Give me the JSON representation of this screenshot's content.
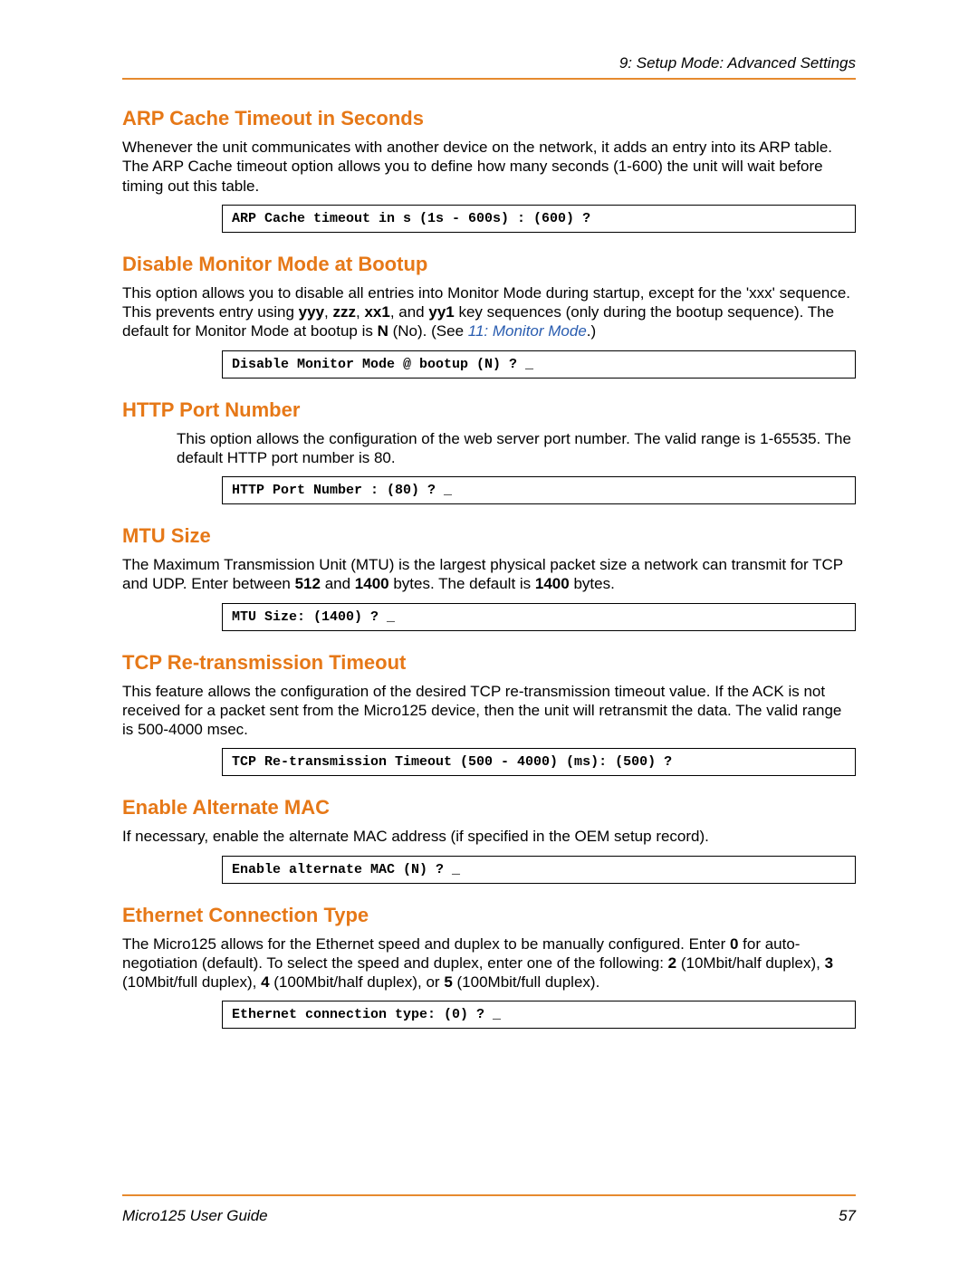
{
  "header": {
    "chapter": "9: Setup Mode: Advanced Settings"
  },
  "footer": {
    "guide": "Micro125 User Guide",
    "page": "57"
  },
  "colors": {
    "accent": "#e67817",
    "rule": "#e68a2e",
    "link": "#2a5db0"
  },
  "sections": {
    "arp": {
      "title": "ARP Cache Timeout in Seconds",
      "body": "Whenever the unit communicates with another device on the network, it adds an entry into its ARP table. The ARP Cache timeout option allows you to define how many seconds (1-600) the unit will wait before timing out this table.",
      "code": "ARP Cache timeout in s (1s - 600s) : (600) ?"
    },
    "monitor": {
      "title": "Disable Monitor Mode at Bootup",
      "body_pre": "This option allows you to disable all entries into Monitor Mode during startup, except for the 'xxx' sequence. This prevents entry using ",
      "k1": "yyy",
      "k2": "zzz",
      "k3": "xx1",
      "k4": "yy1",
      "body_mid": " key sequences (only during the bootup sequence). The default for Monitor Mode at bootup is ",
      "default": "N",
      "body_post": " (No). (See ",
      "link": "11: Monitor Mode",
      "body_end": ".)",
      "code": "Disable Monitor Mode @ bootup (N) ? _"
    },
    "http": {
      "title": "HTTP Port Number",
      "body": "This option allows the configuration of the web server port number. The valid range is 1-65535. The default HTTP port number is 80.",
      "code": "HTTP Port Number : (80) ? _"
    },
    "mtu": {
      "title": "MTU Size",
      "body_pre": "The Maximum Transmission Unit (MTU) is the largest physical packet size a network can transmit for TCP and UDP. Enter between ",
      "min": "512",
      "and": " and ",
      "max": "1400",
      "body_mid": " bytes. The default is ",
      "def": "1400",
      "body_end": " bytes.",
      "code": "MTU Size: (1400) ? _"
    },
    "tcp": {
      "title": "TCP Re-transmission Timeout",
      "body": "This feature allows the configuration of the desired TCP re-transmission timeout value.  If the ACK is not received for a packet sent from the Micro125 device, then the unit will retransmit the data.  The valid range is 500-4000 msec.",
      "code": "TCP Re-transmission Timeout (500 - 4000) (ms): (500) ?"
    },
    "mac": {
      "title": "Enable Alternate MAC",
      "body": "If necessary, enable the alternate MAC address (if specified in the OEM setup record).",
      "code": "Enable alternate MAC (N) ? _"
    },
    "eth": {
      "title": "Ethernet Connection Type",
      "body_pre": "The Micro125 allows for the Ethernet speed and duplex to be manually configured. Enter ",
      "v0": "0",
      "body_a": " for auto-negotiation (default). To select the speed and duplex, enter one of the following: ",
      "v2": "2",
      "d2": " (10Mbit/half duplex), ",
      "v3": "3",
      "d3": " (10Mbit/full duplex), ",
      "v4": "4",
      "d4": " (100Mbit/half duplex), or ",
      "v5": "5",
      "d5": " (100Mbit/full duplex).",
      "code": "Ethernet connection type: (0) ? _"
    }
  }
}
